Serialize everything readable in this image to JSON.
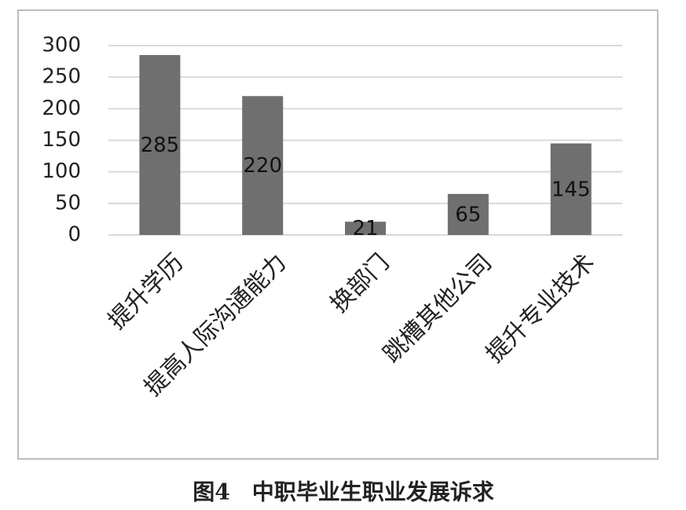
{
  "chart_data": {
    "type": "bar",
    "title": "图4　中职毕业生职业发展诉求",
    "categories": [
      "提升学历",
      "提高人际沟通能力",
      "换部门",
      "跳槽其他公司",
      "提升专业技术"
    ],
    "values": [
      285,
      220,
      21,
      65,
      145
    ],
    "color": "#6f6f6f",
    "ylim": [
      0,
      300
    ],
    "yticks": [
      0,
      50,
      100,
      150,
      200,
      250,
      300
    ],
    "grid": true
  }
}
